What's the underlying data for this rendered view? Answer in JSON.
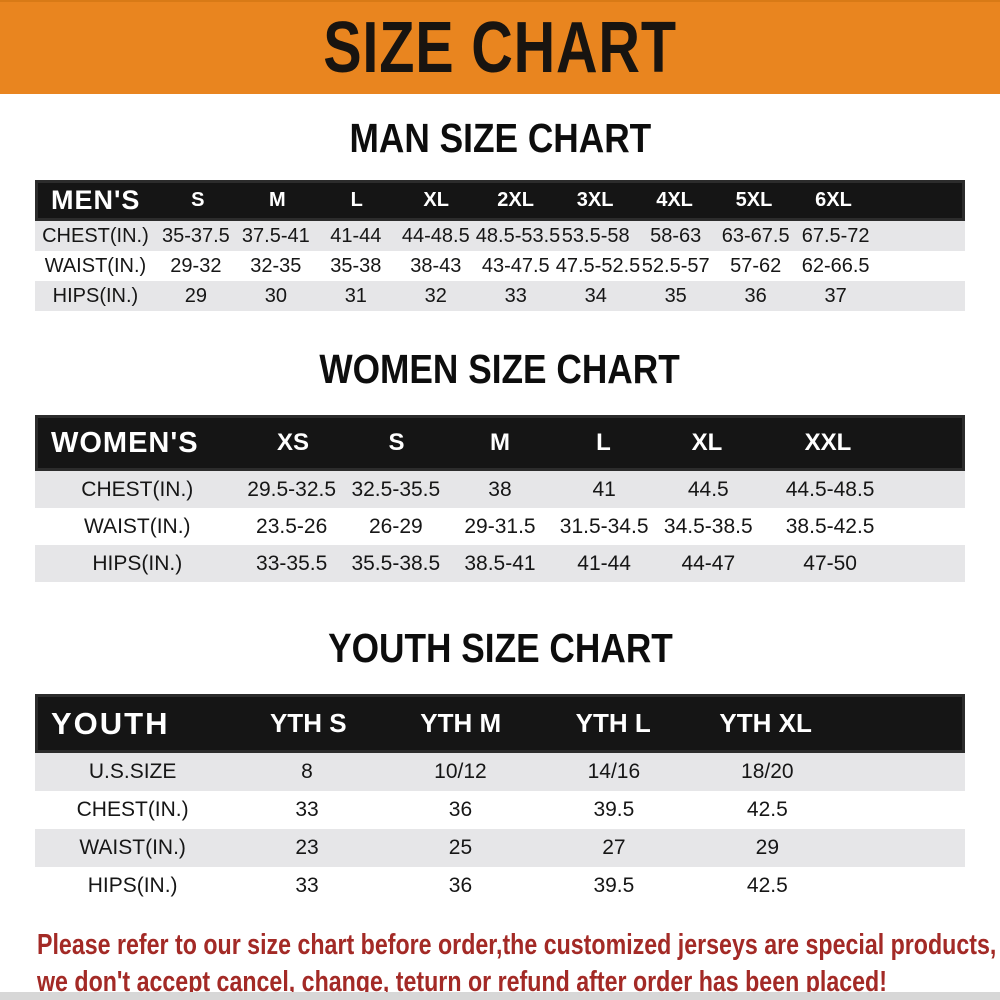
{
  "banner": {
    "title": "SIZE CHART",
    "bg_color": "#E9851F",
    "text_color": "#181410"
  },
  "sections": [
    {
      "heading": "MAN SIZE CHART",
      "corner_label": "MEN'S",
      "columns": [
        "S",
        "M",
        "L",
        "XL",
        "2XL",
        "3XL",
        "4XL",
        "5XL",
        "6XL"
      ],
      "rows": [
        {
          "label": "CHEST(IN.)",
          "values": [
            "35-37.5",
            "37.5-41",
            "41-44",
            "44-48.5",
            "48.5-53.5",
            "53.5-58",
            "58-63",
            "63-67.5",
            "67.5-72"
          ]
        },
        {
          "label": "WAIST(IN.)",
          "values": [
            "29-32",
            "32-35",
            "35-38",
            "38-43",
            "43-47.5",
            "47.5-52.5",
            "52.5-57",
            "57-62",
            "62-66.5"
          ]
        },
        {
          "label": "HIPS(IN.)",
          "values": [
            "29",
            "30",
            "31",
            "32",
            "33",
            "34",
            "35",
            "36",
            "37"
          ]
        }
      ]
    },
    {
      "heading": "WOMEN SIZE CHART",
      "corner_label": "WOMEN'S",
      "columns": [
        "XS",
        "S",
        "M",
        "L",
        "XL",
        "XXL"
      ],
      "rows": [
        {
          "label": "CHEST(IN.)",
          "values": [
            "29.5-32.5",
            "32.5-35.5",
            "38",
            "41",
            "44.5",
            "44.5-48.5"
          ]
        },
        {
          "label": "WAIST(IN.)",
          "values": [
            "23.5-26",
            "26-29",
            "29-31.5",
            "31.5-34.5",
            "34.5-38.5",
            "38.5-42.5"
          ]
        },
        {
          "label": "HIPS(IN.)",
          "values": [
            "33-35.5",
            "35.5-38.5",
            "38.5-41",
            "41-44",
            "44-47",
            "47-50"
          ]
        }
      ]
    },
    {
      "heading": "YOUTH SIZE CHART",
      "corner_label": "YOUTH",
      "columns": [
        "YTH S",
        "YTH M",
        "YTH L",
        "YTH XL"
      ],
      "rows": [
        {
          "label": "U.S.SIZE",
          "values": [
            "8",
            "10/12",
            "14/16",
            "18/20"
          ]
        },
        {
          "label": "CHEST(IN.)",
          "values": [
            "33",
            "36",
            "39.5",
            "42.5"
          ]
        },
        {
          "label": "WAIST(IN.)",
          "values": [
            "23",
            "25",
            "27",
            "29"
          ]
        },
        {
          "label": "HIPS(IN.)",
          "values": [
            "33",
            "36",
            "39.5",
            "42.5"
          ]
        }
      ]
    }
  ],
  "table_style": {
    "header_bg": "#151515",
    "header_text": "#ffffff",
    "stripe_color": "#E6E6E8"
  },
  "footer": {
    "line1": "Please refer to our size chart before order,the customized jerseys are special products,",
    "line2": "we don't accept cancel, change, teturn or refund after order has been placed!",
    "text_color": "#A32A26"
  }
}
